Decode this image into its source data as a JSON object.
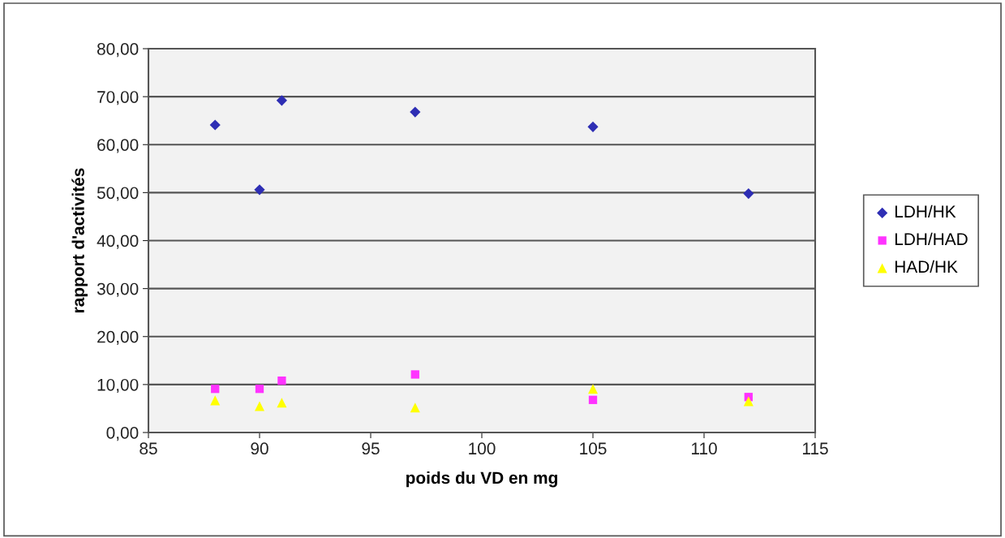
{
  "chart_data": {
    "type": "scatter",
    "xlabel": "poids du VD en mg",
    "ylabel": "rapport d'activités",
    "x": [
      88,
      90,
      91,
      97,
      105,
      112
    ],
    "series": [
      {
        "name": "LDH/HK",
        "color": "#2e2eb4",
        "marker": "diamond",
        "values": [
          64.1,
          50.6,
          69.2,
          66.8,
          63.7,
          49.8
        ]
      },
      {
        "name": "LDH/HAD",
        "color": "#ff33ff",
        "marker": "square",
        "values": [
          9.1,
          9.1,
          10.8,
          12.1,
          6.8,
          7.4
        ]
      },
      {
        "name": "HAD/HK",
        "color": "#ffff00",
        "marker": "triangle",
        "values": [
          6.7,
          5.5,
          6.2,
          5.2,
          9.1,
          6.5
        ]
      }
    ],
    "xlim": [
      85,
      115
    ],
    "xticks": [
      85,
      90,
      95,
      100,
      105,
      110,
      115
    ],
    "ylim": [
      0,
      80
    ],
    "yticks": [
      {
        "value": 0,
        "label": "0,00"
      },
      {
        "value": 10,
        "label": "10,00"
      },
      {
        "value": 20,
        "label": "20,00"
      },
      {
        "value": 30,
        "label": "30,00"
      },
      {
        "value": 40,
        "label": "40,00"
      },
      {
        "value": 50,
        "label": "50,00"
      },
      {
        "value": 60,
        "label": "60,00"
      },
      {
        "value": 70,
        "label": "70,00"
      },
      {
        "value": 80,
        "label": "80,00"
      }
    ],
    "grid": "y",
    "legend": "right"
  }
}
